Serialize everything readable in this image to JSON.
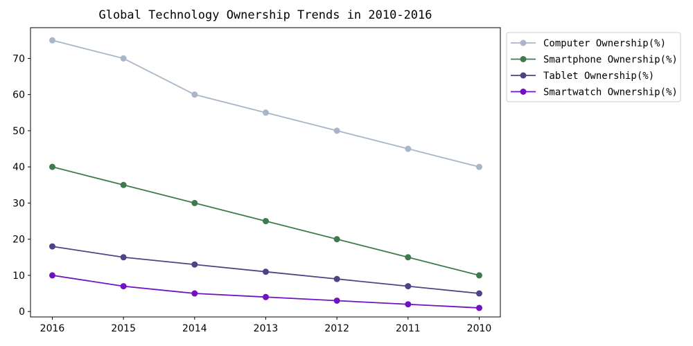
{
  "chart_data": {
    "type": "line",
    "title": "Global Technology Ownership Trends in 2010-2016",
    "xlabel": "",
    "ylabel": "",
    "categories": [
      "2016",
      "2015",
      "2014",
      "2013",
      "2012",
      "2011",
      "2010"
    ],
    "ylim": [
      -1.5,
      78.5
    ],
    "yticks": [
      0,
      10,
      20,
      30,
      40,
      50,
      60,
      70
    ],
    "grid": false,
    "legend_position": "outside top-right",
    "series": [
      {
        "name": "Computer Ownership(%)",
        "color": "#a9b5c8",
        "values": [
          75,
          70,
          60,
          55,
          50,
          45,
          40
        ]
      },
      {
        "name": "Smartphone Ownership(%)",
        "color": "#3e7b4b",
        "values": [
          40,
          35,
          30,
          25,
          20,
          15,
          10
        ]
      },
      {
        "name": "Tablet Ownership(%)",
        "color": "#4b4585",
        "values": [
          18,
          15,
          13,
          11,
          9,
          7,
          5
        ]
      },
      {
        "name": "Smartwatch Ownership(%)",
        "color": "#7012c1",
        "values": [
          10,
          7,
          5,
          4,
          3,
          2,
          1
        ]
      }
    ]
  }
}
